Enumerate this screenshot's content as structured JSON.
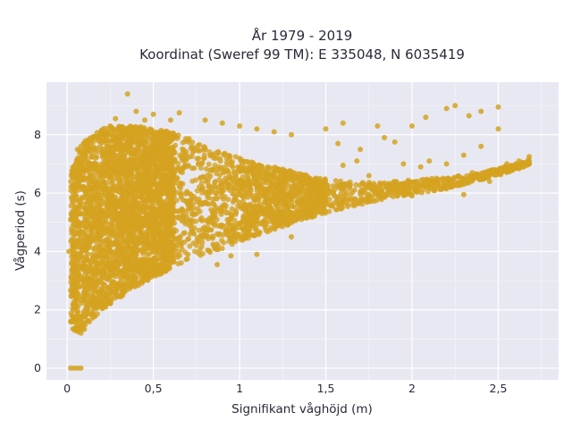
{
  "chart_data": {
    "type": "scatter",
    "title": [
      "År 1979 - 2019",
      "Koordinat (Sweref 99 TM): E 335048, N 6035419"
    ],
    "xlabel": "Signifikant våghöjd (m)",
    "ylabel": "Vågperiod (s)",
    "xlim": [
      -0.12,
      2.85
    ],
    "ylim": [
      -0.4,
      9.8
    ],
    "x_ticks": [
      0,
      0.5,
      1,
      1.5,
      2,
      2.5
    ],
    "x_tick_labels": [
      "0",
      "0,5",
      "1",
      "1,5",
      "2",
      "2,5"
    ],
    "y_ticks": [
      0,
      2,
      4,
      6,
      8
    ],
    "y_tick_labels": [
      "0",
      "2",
      "4",
      "6",
      "8"
    ],
    "grid": true,
    "background": "#e8e8f2",
    "marker_color": "#d4a31f",
    "series": [
      {
        "points": [
          [
            0.35,
            9.4
          ],
          [
            0.28,
            8.55
          ],
          [
            0.4,
            8.8
          ],
          [
            0.45,
            8.5
          ],
          [
            0.5,
            8.7
          ],
          [
            0.6,
            8.5
          ],
          [
            0.65,
            8.75
          ],
          [
            0.8,
            8.5
          ],
          [
            0.9,
            8.4
          ],
          [
            1.0,
            8.3
          ],
          [
            1.1,
            8.2
          ],
          [
            1.2,
            8.1
          ],
          [
            1.3,
            8.0
          ],
          [
            1.5,
            8.2
          ],
          [
            1.6,
            8.4
          ],
          [
            1.57,
            7.7
          ],
          [
            1.68,
            7.1
          ],
          [
            1.8,
            8.3
          ],
          [
            1.84,
            7.9
          ],
          [
            1.9,
            7.75
          ],
          [
            2.0,
            8.3
          ],
          [
            2.08,
            8.6
          ],
          [
            2.2,
            8.9
          ],
          [
            2.25,
            9.0
          ],
          [
            2.33,
            8.65
          ],
          [
            2.4,
            8.8
          ],
          [
            2.5,
            8.95
          ],
          [
            2.4,
            7.6
          ],
          [
            2.5,
            8.2
          ],
          [
            2.3,
            7.3
          ],
          [
            2.2,
            7.0
          ],
          [
            2.1,
            7.1
          ],
          [
            2.05,
            6.9
          ],
          [
            1.6,
            6.95
          ],
          [
            1.7,
            7.5
          ],
          [
            2.68,
            7.25
          ],
          [
            2.62,
            7.1
          ],
          [
            2.55,
            7.0
          ],
          [
            2.45,
            6.4
          ],
          [
            2.3,
            5.95
          ],
          [
            2.2,
            6.15
          ],
          [
            2.0,
            5.9
          ],
          [
            1.6,
            5.7
          ],
          [
            1.2,
            5.2
          ],
          [
            0.85,
            4.2
          ],
          [
            0.95,
            3.85
          ],
          [
            0.7,
            3.9
          ],
          [
            0.6,
            3.6
          ],
          [
            0.5,
            3.4
          ],
          [
            0.4,
            3.1
          ],
          [
            0.3,
            2.8
          ],
          [
            0.2,
            2.3
          ],
          [
            0.12,
            2.0
          ],
          [
            0.08,
            1.2
          ],
          [
            0.06,
            1.4
          ],
          [
            0.05,
            1.7
          ],
          [
            0.02,
            1.6
          ],
          [
            0.01,
            4.0
          ],
          [
            0.03,
            4.2
          ],
          [
            0.05,
            5.5
          ],
          [
            0.06,
            7.5
          ],
          [
            0.1,
            7.7
          ],
          [
            0.15,
            7.9
          ],
          [
            0.2,
            8.1
          ],
          [
            0.25,
            8.3
          ],
          [
            0.3,
            8.2
          ],
          [
            1.1,
            3.9
          ],
          [
            0.98,
            4.5
          ],
          [
            0.87,
            3.55
          ],
          [
            1.3,
            4.5
          ],
          [
            2.57,
            6.85
          ],
          [
            2.47,
            6.8
          ],
          [
            2.35,
            6.7
          ],
          [
            2.1,
            6.4
          ],
          [
            1.95,
            7.0
          ],
          [
            1.75,
            6.6
          ],
          [
            0.02,
            0.0
          ],
          [
            0.04,
            0.0
          ],
          [
            0.06,
            0.0
          ],
          [
            0.08,
            0.0
          ]
        ]
      }
    ],
    "density_envelope": {
      "x": [
        0.02,
        0.05,
        0.1,
        0.15,
        0.2,
        0.3,
        0.4,
        0.5,
        0.6,
        0.7,
        0.8,
        0.9,
        1.0,
        1.1,
        1.2,
        1.3,
        1.4,
        1.5,
        1.6,
        1.7,
        1.8,
        1.9,
        2.0,
        2.1,
        2.2,
        2.3,
        2.4,
        2.5,
        2.6,
        2.7
      ],
      "lower": [
        1.4,
        1.2,
        1.3,
        1.7,
        2.0,
        2.4,
        2.8,
        3.1,
        3.4,
        3.7,
        3.9,
        4.1,
        4.35,
        4.55,
        4.75,
        4.95,
        5.15,
        5.3,
        5.45,
        5.6,
        5.75,
        5.85,
        5.95,
        6.05,
        6.15,
        6.3,
        6.45,
        6.6,
        6.8,
        7.0
      ],
      "upper": [
        6.6,
        7.3,
        7.8,
        8.0,
        8.2,
        8.3,
        8.3,
        8.2,
        8.1,
        7.9,
        7.6,
        7.4,
        7.2,
        7.0,
        6.9,
        6.75,
        6.6,
        6.5,
        6.4,
        6.35,
        6.4,
        6.4,
        6.45,
        6.5,
        6.55,
        6.6,
        6.7,
        6.85,
        7.0,
        7.2
      ]
    }
  }
}
